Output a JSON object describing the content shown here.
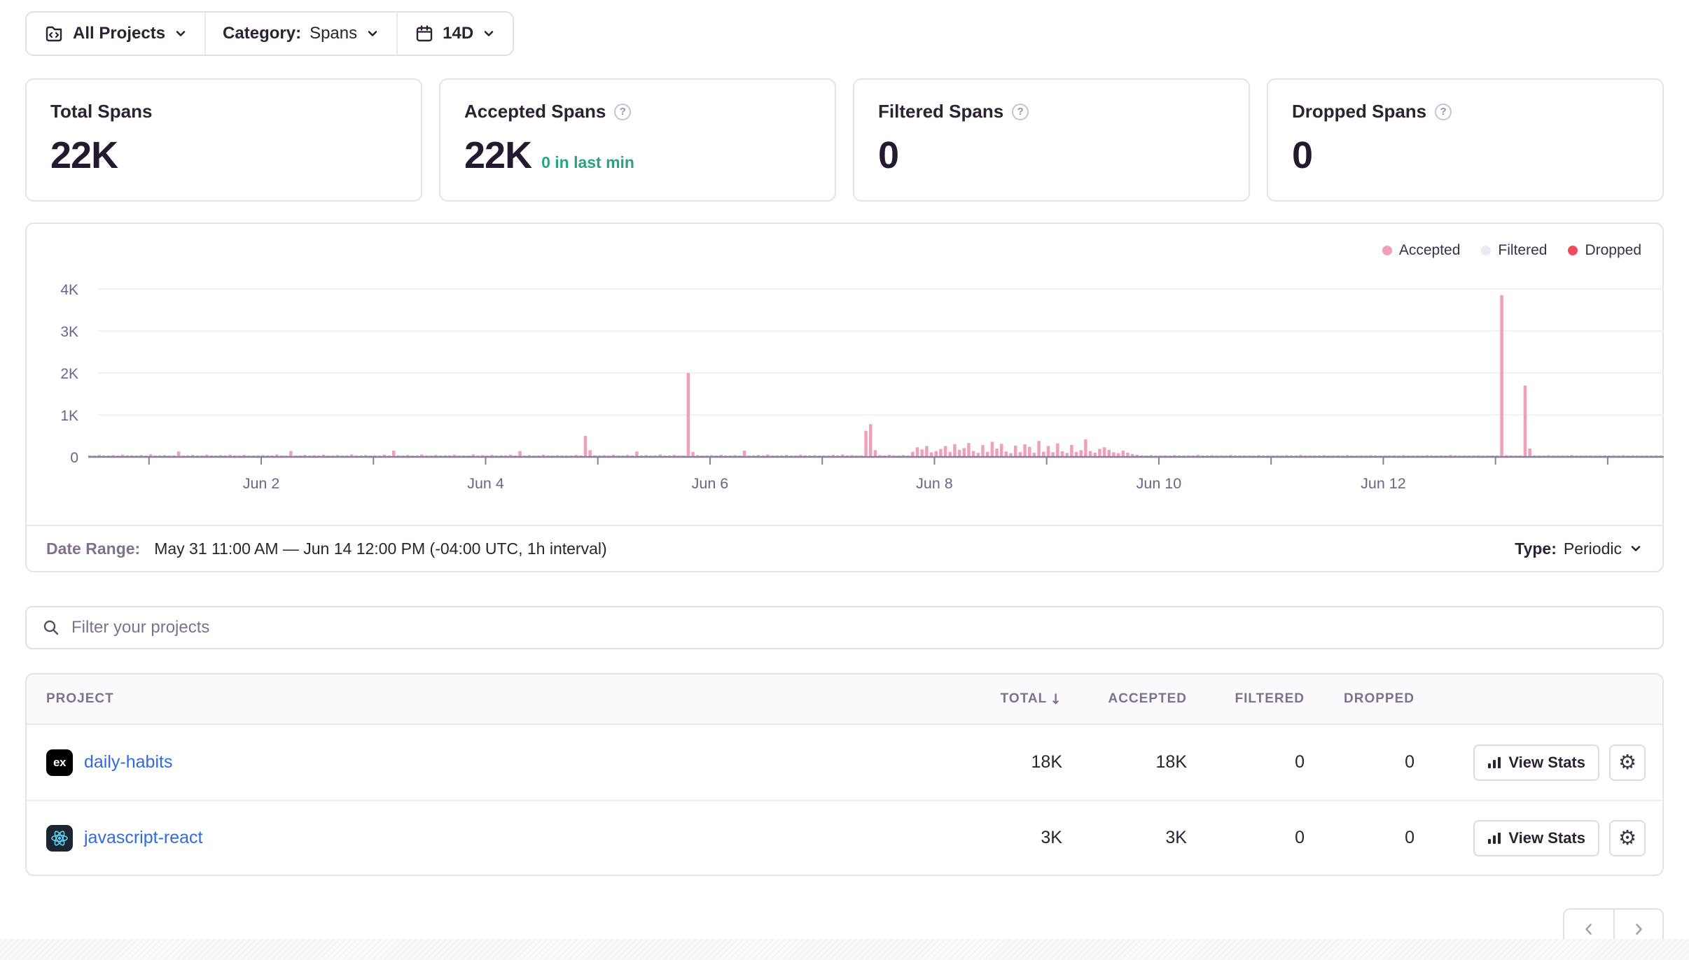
{
  "colors": {
    "accepted": "#F0A0BB",
    "filtered": "#EDE8F1",
    "dropped": "#F04A5D",
    "link": "#2F6BE0",
    "success": "#2BA185"
  },
  "toolbar": {
    "projects_label": "All Projects",
    "category_label": "Category:",
    "category_value": "Spans",
    "range_label": "14D"
  },
  "cards": [
    {
      "title": "Total Spans",
      "value": "22K"
    },
    {
      "title": "Accepted Spans",
      "value": "22K",
      "note": "0 in last min",
      "help": "?"
    },
    {
      "title": "Filtered Spans",
      "value": "0",
      "help": "?"
    },
    {
      "title": "Dropped Spans",
      "value": "0",
      "help": "?"
    }
  ],
  "chart_data": {
    "type": "bar",
    "x_start": "May 31 11:00 AM",
    "x_end": "Jun 14 12:00 PM",
    "interval": "1h",
    "ylim": [
      0,
      4000
    ],
    "ytick_labels": [
      "0",
      "1K",
      "2K",
      "3K",
      "4K"
    ],
    "grid": true,
    "legend_position": "top-right",
    "legend": [
      {
        "label": "Accepted",
        "color": "#F0A0BB"
      },
      {
        "label": "Filtered",
        "color": "#EDE8F1"
      },
      {
        "label": "Dropped",
        "color": "#F04A5D"
      }
    ],
    "day_tick_indices": [
      13,
      37,
      61,
      85,
      109,
      133,
      157,
      181,
      205,
      229,
      253,
      277,
      301,
      325
    ],
    "labeled_ticks": [
      {
        "index": 37,
        "label": "Jun 2"
      },
      {
        "index": 85,
        "label": "Jun 4"
      },
      {
        "index": 133,
        "label": "Jun 6"
      },
      {
        "index": 181,
        "label": "Jun 8"
      },
      {
        "index": 229,
        "label": "Jun 10"
      },
      {
        "index": 277,
        "label": "Jun 12"
      }
    ],
    "series": [
      {
        "name": "Accepted",
        "color": "#F0A0BB",
        "values": [
          35,
          22,
          48,
          28,
          18,
          42,
          30,
          55,
          24,
          38,
          20,
          45,
          28,
          60,
          32,
          20,
          44,
          26,
          38,
          130,
          30,
          22,
          48,
          34,
          26,
          52,
          30,
          20,
          42,
          28,
          55,
          36,
          24,
          46,
          30,
          22,
          38,
          44,
          26,
          36,
          58,
          30,
          22,
          140,
          34,
          26,
          48,
          30,
          40,
          24,
          52,
          32,
          22,
          44,
          28,
          36,
          60,
          30,
          24,
          46,
          32,
          38,
          24,
          50,
          30,
          150,
          36,
          26,
          44,
          28,
          20,
          56,
          34,
          24,
          46,
          30,
          38,
          22,
          52,
          28,
          36,
          24,
          60,
          30,
          44,
          30,
          48,
          26,
          38,
          22,
          54,
          32,
          140,
          26,
          44,
          30,
          22,
          50,
          34,
          26,
          42,
          28,
          36,
          20,
          46,
          30,
          500,
          160,
          38,
          26,
          40,
          24,
          52,
          30,
          22,
          46,
          34,
          130,
          28,
          44,
          26,
          36,
          58,
          30,
          24,
          48,
          32,
          22,
          2000,
          120,
          44,
          30,
          36,
          42,
          26,
          50,
          30,
          22,
          44,
          28,
          150,
          34,
          24,
          46,
          30,
          56,
          26,
          38,
          22,
          48,
          30,
          24,
          52,
          34,
          26,
          40,
          28,
          36,
          24,
          48,
          30,
          58,
          26,
          42,
          34,
          26,
          620,
          780,
          160,
          44,
          30,
          52,
          36,
          28,
          46,
          34,
          120,
          230,
          180,
          260,
          110,
          140,
          190,
          260,
          120,
          305,
          170,
          210,
          330,
          140,
          95,
          280,
          120,
          360,
          200,
          310,
          130,
          90,
          270,
          115,
          300,
          240,
          100,
          380,
          125,
          260,
          110,
          320,
          135,
          95,
          285,
          120,
          160,
          420,
          140,
          100,
          190,
          230,
          170,
          110,
          90,
          150,
          100,
          70,
          50,
          36,
          28,
          44,
          30,
          24,
          36,
          20,
          44,
          28,
          18,
          38,
          26,
          48,
          30,
          20,
          40,
          24,
          34,
          18,
          46,
          28,
          22,
          36,
          24,
          18,
          42,
          26,
          32,
          20,
          34,
          24,
          40,
          18,
          30,
          46,
          22,
          36,
          26,
          18,
          42,
          28,
          20,
          38,
          24,
          44,
          30,
          18,
          34,
          22,
          40,
          26,
          18,
          28,
          20,
          38,
          24,
          44,
          18,
          32,
          26,
          20,
          40,
          28,
          18,
          36,
          22,
          46,
          30,
          20,
          34,
          24,
          18,
          38,
          28,
          22,
          32,
          26,
          3850,
          40,
          24,
          32,
          20,
          1700,
          200,
          36,
          24,
          18,
          40,
          28,
          20,
          34,
          24,
          44,
          18,
          30,
          22,
          38,
          26,
          18,
          32,
          24,
          36,
          20,
          40,
          26,
          18,
          34,
          24,
          30,
          20,
          38,
          26
        ]
      },
      {
        "name": "Filtered",
        "color": "#EDE8F1",
        "constant": 0
      },
      {
        "name": "Dropped",
        "color": "#F04A5D",
        "constant": 0
      }
    ]
  },
  "date_range": {
    "label": "Date Range:",
    "value": "May 31 11:00 AM — Jun 14 12:00 PM (-04:00 UTC, 1h interval)",
    "type_label": "Type:",
    "type_value": "Periodic"
  },
  "filter": {
    "placeholder": "Filter your projects"
  },
  "table": {
    "columns": {
      "project": "PROJECT",
      "total": "TOTAL",
      "accepted": "ACCEPTED",
      "filtered": "FILTERED",
      "dropped": "DROPPED"
    },
    "sort_arrow": "↓",
    "rows": [
      {
        "project": "daily-habits",
        "platform": "expo",
        "platform_glyph": "ex",
        "total": "18K",
        "accepted": "18K",
        "filtered": "0",
        "dropped": "0",
        "action": "View Stats"
      },
      {
        "project": "javascript-react",
        "platform": "react",
        "total": "3K",
        "accepted": "3K",
        "filtered": "0",
        "dropped": "0",
        "action": "View Stats"
      }
    ],
    "action_gear": "⚙"
  }
}
